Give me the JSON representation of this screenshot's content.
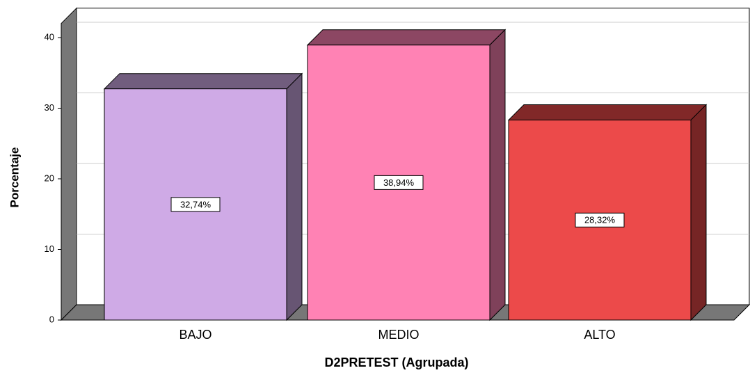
{
  "chart_data": {
    "type": "bar3d",
    "xlabel": "D2PRETEST (Agrupada)",
    "ylabel": "Porcentaje",
    "categories": [
      "BAJO",
      "MEDIO",
      "ALTO"
    ],
    "values": [
      32.74,
      38.94,
      28.32
    ],
    "value_labels": [
      "32,74%",
      "38,94%",
      "28,32%"
    ],
    "colors": [
      "#cfaae6",
      "#ff82b4",
      "#ec4a4a"
    ],
    "ylim": [
      0,
      42
    ],
    "yticks": [
      0,
      10,
      20,
      30,
      40
    ],
    "grid": true
  }
}
